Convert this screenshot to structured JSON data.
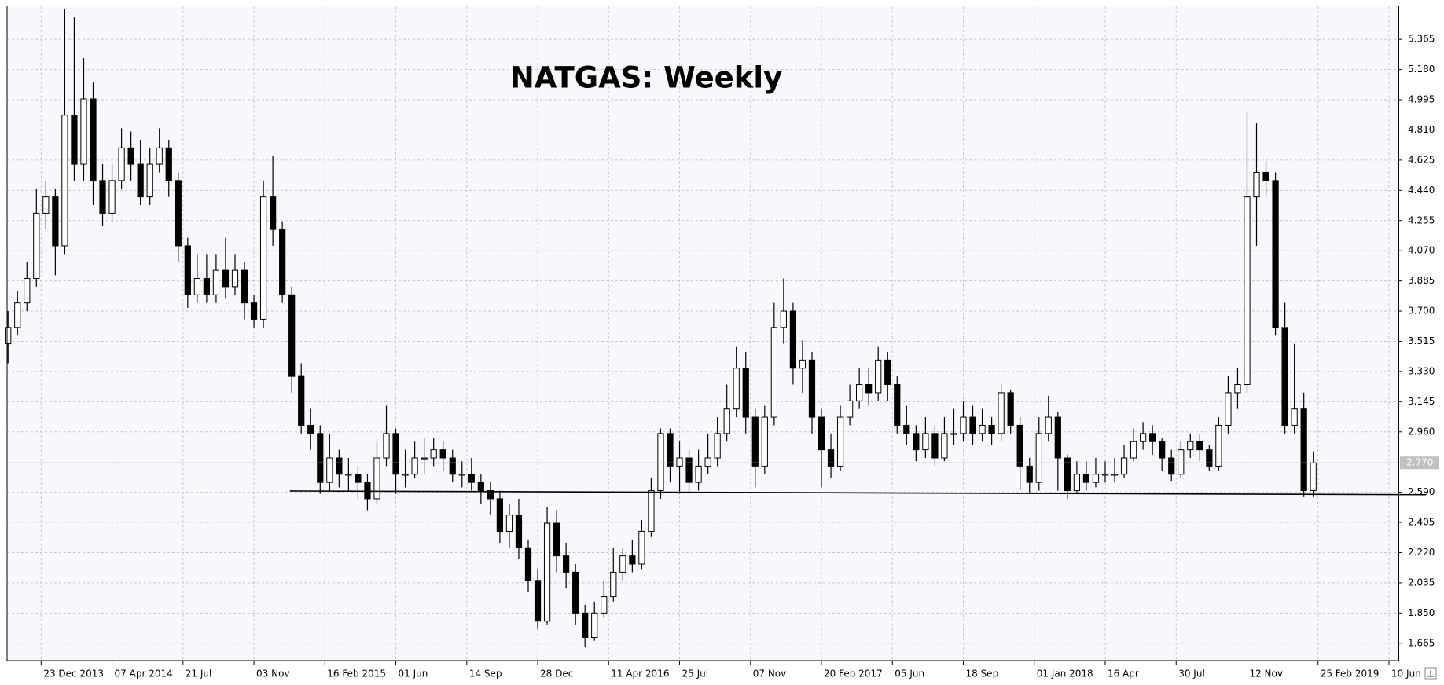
{
  "chart_data": {
    "type": "candlestick",
    "title": "NATGAS: Weekly",
    "open": [
      3.5,
      3.6,
      3.75,
      3.9,
      4.3,
      4.4,
      4.1,
      4.9,
      4.6,
      5.0,
      4.5,
      4.3,
      4.5,
      4.7,
      4.6,
      4.4,
      4.6,
      4.7,
      4.5,
      4.1,
      3.8,
      3.9,
      3.8,
      3.95,
      3.85,
      3.95,
      3.75,
      3.65,
      4.4,
      4.2,
      3.8,
      3.3,
      3.0,
      2.95,
      2.65,
      2.8,
      2.7,
      2.7,
      2.65,
      2.55,
      2.8,
      2.95,
      2.7,
      2.7,
      2.8,
      2.8,
      2.85,
      2.8,
      2.7,
      2.7,
      2.65,
      2.6,
      2.55,
      2.35,
      2.45,
      2.25,
      2.05,
      1.8,
      2.4,
      2.2,
      2.1,
      1.85,
      1.7,
      1.85,
      1.95,
      2.1,
      2.2,
      2.15,
      2.35,
      2.6,
      2.95,
      2.75,
      2.8,
      2.65,
      2.75,
      2.8,
      2.95,
      3.1,
      3.35,
      3.05,
      2.75,
      3.05,
      3.6,
      3.7,
      3.35,
      3.4,
      3.05,
      2.85,
      2.75,
      3.05,
      3.15,
      3.25,
      3.2,
      3.4,
      3.25,
      3.0,
      2.95,
      2.85,
      2.95,
      2.8,
      2.95,
      2.95,
      3.05,
      2.95,
      3.0,
      2.95,
      3.2,
      3.0,
      2.75,
      2.65,
      2.95,
      3.05,
      2.8,
      2.6,
      2.7,
      2.65,
      2.7,
      2.7,
      2.7,
      2.8,
      2.9,
      2.95,
      2.9,
      2.8,
      2.7,
      2.85,
      2.9,
      2.85,
      2.75,
      3.0,
      3.2,
      3.25,
      4.4,
      4.55,
      4.5,
      3.6,
      3.0,
      3.1,
      2.6
    ],
    "high": [
      3.7,
      3.82,
      4.0,
      4.45,
      4.5,
      4.45,
      5.55,
      5.5,
      5.25,
      5.1,
      4.6,
      4.6,
      4.82,
      4.8,
      4.75,
      4.7,
      4.82,
      4.75,
      4.55,
      4.15,
      4.05,
      4.05,
      4.05,
      4.15,
      4.05,
      4.0,
      3.8,
      4.5,
      4.65,
      4.25,
      3.85,
      3.38,
      3.1,
      3.0,
      2.95,
      2.85,
      2.8,
      2.75,
      2.7,
      2.9,
      3.12,
      2.98,
      2.85,
      2.9,
      2.92,
      2.92,
      2.9,
      2.85,
      2.78,
      2.8,
      2.7,
      2.65,
      2.6,
      2.52,
      2.55,
      2.3,
      2.12,
      2.5,
      2.48,
      2.28,
      2.15,
      1.9,
      1.92,
      2.05,
      2.25,
      2.25,
      2.3,
      2.42,
      2.68,
      2.98,
      2.98,
      2.9,
      2.85,
      2.85,
      2.95,
      3.05,
      3.25,
      3.48,
      3.45,
      3.1,
      3.12,
      3.75,
      3.9,
      3.75,
      3.52,
      3.45,
      3.1,
      2.95,
      3.12,
      3.25,
      3.35,
      3.35,
      3.48,
      3.45,
      3.3,
      3.12,
      3.0,
      3.05,
      3.0,
      3.05,
      3.1,
      3.15,
      3.12,
      3.1,
      3.05,
      3.25,
      3.22,
      3.05,
      2.8,
      3.05,
      3.18,
      3.08,
      2.82,
      2.78,
      2.78,
      2.8,
      2.78,
      2.8,
      2.88,
      2.98,
      3.02,
      3.0,
      2.92,
      2.85,
      2.9,
      2.95,
      2.95,
      2.88,
      3.05,
      3.3,
      3.35,
      4.92,
      4.85,
      4.62,
      4.55,
      3.75,
      3.5,
      3.2,
      2.84
    ],
    "low": [
      3.38,
      3.55,
      3.7,
      3.85,
      4.2,
      3.92,
      4.05,
      4.5,
      4.5,
      4.35,
      4.22,
      4.25,
      4.45,
      4.5,
      4.35,
      4.35,
      4.55,
      4.4,
      4.0,
      3.72,
      3.75,
      3.75,
      3.75,
      3.78,
      3.8,
      3.65,
      3.6,
      3.6,
      4.1,
      3.75,
      3.2,
      2.95,
      2.85,
      2.58,
      2.6,
      2.62,
      2.6,
      2.55,
      2.48,
      2.52,
      2.75,
      2.58,
      2.62,
      2.68,
      2.7,
      2.75,
      2.72,
      2.65,
      2.62,
      2.6,
      2.52,
      2.45,
      2.28,
      2.25,
      2.18,
      1.98,
      1.75,
      1.78,
      2.1,
      2.0,
      1.78,
      1.64,
      1.68,
      1.82,
      1.92,
      2.05,
      2.1,
      2.12,
      2.32,
      2.55,
      2.65,
      2.58,
      2.58,
      2.6,
      2.7,
      2.75,
      2.9,
      3.05,
      2.95,
      2.62,
      2.7,
      3.0,
      3.5,
      3.25,
      3.2,
      2.95,
      2.62,
      2.68,
      2.72,
      3.0,
      3.1,
      3.12,
      3.15,
      3.15,
      2.95,
      2.88,
      2.78,
      2.8,
      2.75,
      2.78,
      2.88,
      2.9,
      2.88,
      2.9,
      2.88,
      2.9,
      2.95,
      2.6,
      2.58,
      2.6,
      2.9,
      2.6,
      2.55,
      2.58,
      2.6,
      2.62,
      2.65,
      2.65,
      2.68,
      2.78,
      2.85,
      2.82,
      2.72,
      2.66,
      2.68,
      2.8,
      2.78,
      2.72,
      2.72,
      2.95,
      3.1,
      3.2,
      4.1,
      4.4,
      3.55,
      2.95,
      2.95,
      2.56,
      2.56
    ],
    "close": [
      3.6,
      3.75,
      3.9,
      4.3,
      4.4,
      4.1,
      4.9,
      4.6,
      5.0,
      4.5,
      4.3,
      4.5,
      4.7,
      4.6,
      4.4,
      4.6,
      4.7,
      4.5,
      4.1,
      3.8,
      3.9,
      3.8,
      3.95,
      3.85,
      3.95,
      3.75,
      3.65,
      4.4,
      4.2,
      3.8,
      3.3,
      3.0,
      2.95,
      2.65,
      2.8,
      2.7,
      2.7,
      2.65,
      2.55,
      2.8,
      2.95,
      2.7,
      2.7,
      2.8,
      2.8,
      2.85,
      2.8,
      2.7,
      2.7,
      2.65,
      2.6,
      2.55,
      2.35,
      2.45,
      2.25,
      2.05,
      1.8,
      2.4,
      2.2,
      2.1,
      1.85,
      1.7,
      1.85,
      1.95,
      2.1,
      2.2,
      2.15,
      2.35,
      2.6,
      2.95,
      2.75,
      2.8,
      2.65,
      2.75,
      2.8,
      2.95,
      3.1,
      3.35,
      3.05,
      2.75,
      3.05,
      3.6,
      3.7,
      3.35,
      3.4,
      3.05,
      2.85,
      2.75,
      3.05,
      3.15,
      3.25,
      3.2,
      3.4,
      3.25,
      3.0,
      2.95,
      2.85,
      2.95,
      2.8,
      2.95,
      2.95,
      3.05,
      2.95,
      3.0,
      2.95,
      3.2,
      3.0,
      2.75,
      2.65,
      2.95,
      3.05,
      2.8,
      2.6,
      2.7,
      2.65,
      2.7,
      2.7,
      2.7,
      2.8,
      2.9,
      2.95,
      2.9,
      2.8,
      2.7,
      2.85,
      2.9,
      2.85,
      2.75,
      3.0,
      3.2,
      3.25,
      4.4,
      4.55,
      4.5,
      3.6,
      3.0,
      3.1,
      2.6,
      2.77
    ],
    "xlim": [
      -0.1,
      147
    ],
    "xticks": [
      {
        "value": 3.5,
        "label": "23 Dec 2013"
      },
      {
        "value": 11,
        "label": "07 Apr 2014"
      },
      {
        "value": 18.5,
        "label": "21 Jul"
      },
      {
        "value": 26,
        "label": "03 Nov"
      },
      {
        "value": 33.5,
        "label": "16 Feb 2015"
      },
      {
        "value": 41,
        "label": "01 Jun"
      },
      {
        "value": 48.5,
        "label": "14 Sep"
      },
      {
        "value": 56,
        "label": "28 Dec"
      },
      {
        "value": 63.5,
        "label": "11 Apr 2016"
      },
      {
        "value": 71,
        "label": "25 Jul"
      },
      {
        "value": 78.5,
        "label": "07 Nov"
      },
      {
        "value": 86,
        "label": "20 Feb 2017"
      },
      {
        "value": 93.5,
        "label": "05 Jun"
      },
      {
        "value": 101,
        "label": "18 Sep"
      },
      {
        "value": 108.5,
        "label": "01 Jan 2018"
      },
      {
        "value": 116,
        "label": "16 Apr"
      },
      {
        "value": 123.5,
        "label": "30 Jul"
      },
      {
        "value": 131,
        "label": "12 Nov"
      },
      {
        "value": 138.5,
        "label": "25 Feb 2019"
      },
      {
        "value": 146,
        "label": "10 Jun"
      }
    ],
    "ylim": [
      1.558,
      5.568
    ],
    "yticks": [
      {
        "value": 5.365,
        "label": "5.365"
      },
      {
        "value": 5.18,
        "label": "5.180"
      },
      {
        "value": 4.995,
        "label": "4.995"
      },
      {
        "value": 4.81,
        "label": "4.810"
      },
      {
        "value": 4.625,
        "label": "4.625"
      },
      {
        "value": 4.44,
        "label": "4.440"
      },
      {
        "value": 4.255,
        "label": "4.255"
      },
      {
        "value": 4.07,
        "label": "4.070"
      },
      {
        "value": 3.885,
        "label": "3.885"
      },
      {
        "value": 3.7,
        "label": "3.700"
      },
      {
        "value": 3.515,
        "label": "3.515"
      },
      {
        "value": 3.33,
        "label": "3.330"
      },
      {
        "value": 3.145,
        "label": "3.145"
      },
      {
        "value": 2.96,
        "label": "2.960"
      },
      {
        "value": 2.59,
        "label": "2.590"
      },
      {
        "value": 2.405,
        "label": "2.405"
      },
      {
        "value": 2.22,
        "label": "2.220"
      },
      {
        "value": 2.035,
        "label": "2.035"
      },
      {
        "value": 1.85,
        "label": "1.850"
      },
      {
        "value": 1.665,
        "label": "1.665"
      }
    ],
    "grid": true,
    "up_color": "#ffffff",
    "down_color": "#000000",
    "wick_color": "#000000",
    "current_price": {
      "value": 2.77,
      "label": "2.770"
    },
    "trendline": {
      "x": [
        29.8,
        149.9
      ],
      "y": [
        2.598,
        2.575
      ]
    }
  }
}
